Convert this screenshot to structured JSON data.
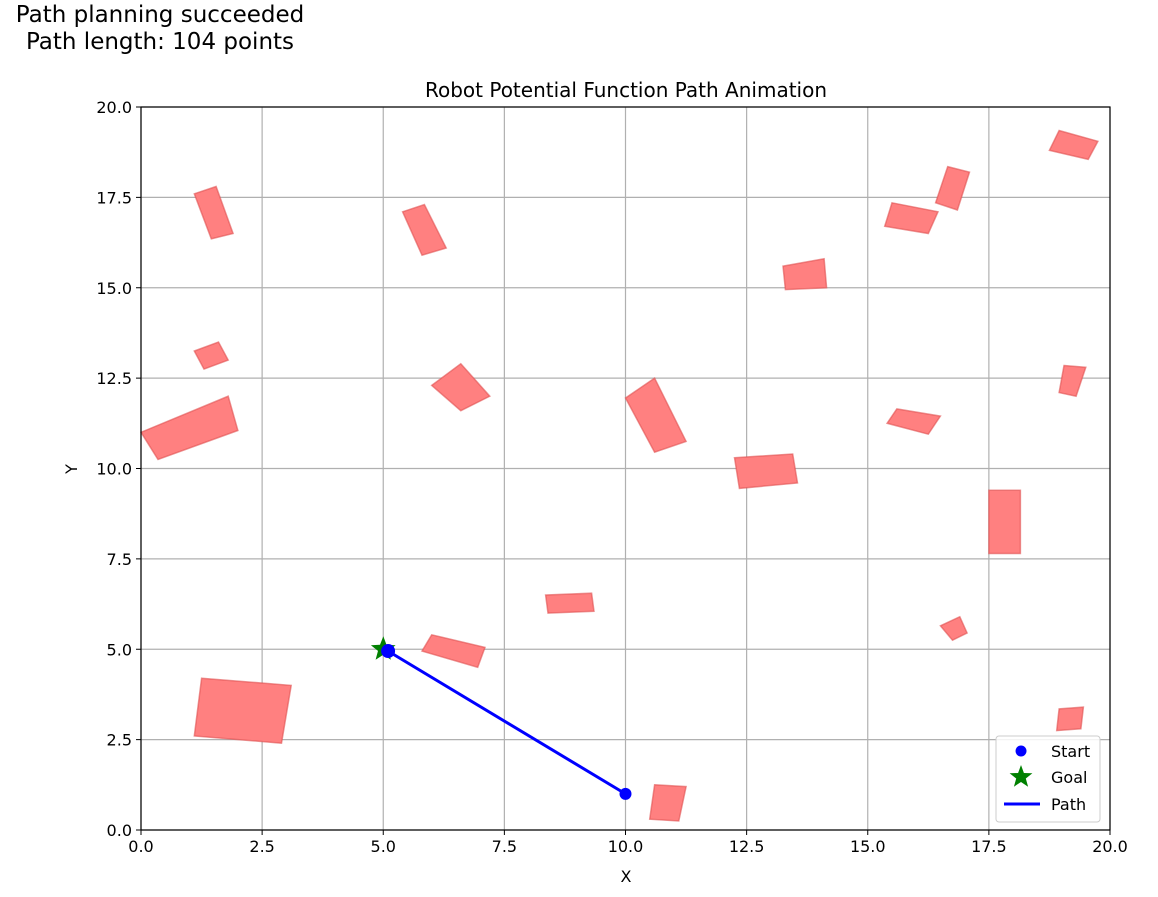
{
  "status": {
    "line1": "Path planning succeeded",
    "line2": "Path length: 104 points"
  },
  "chart_data": {
    "type": "scatter",
    "title": "Robot Potential Function Path Animation",
    "xlabel": "X",
    "ylabel": "Y",
    "xlim": [
      0,
      20
    ],
    "ylim": [
      0,
      20
    ],
    "grid": true,
    "xticks": [
      "0.0",
      "2.5",
      "5.0",
      "7.5",
      "10.0",
      "12.5",
      "15.0",
      "17.5",
      "20.0"
    ],
    "yticks": [
      "0.0",
      "2.5",
      "5.0",
      "7.5",
      "10.0",
      "12.5",
      "15.0",
      "17.5",
      "20.0"
    ],
    "legend": {
      "position": "lower-right",
      "entries": [
        {
          "label": "Start",
          "marker": "circle",
          "color": "#0000ff"
        },
        {
          "label": "Goal",
          "marker": "star",
          "color": "#008000"
        },
        {
          "label": "Path",
          "marker": "line",
          "color": "#0000ff"
        }
      ]
    },
    "start": {
      "x": 10.0,
      "y": 1.0
    },
    "goal": {
      "x": 5.0,
      "y": 5.0
    },
    "current": {
      "x": 5.1,
      "y": 4.95
    },
    "path": [
      {
        "x": 10.0,
        "y": 1.0
      },
      {
        "x": 5.1,
        "y": 4.95
      }
    ],
    "obstacle_color": "#ff8080",
    "obstacles": [
      [
        [
          1.25,
          4.2
        ],
        [
          3.1,
          4.0
        ],
        [
          2.9,
          2.4
        ],
        [
          1.1,
          2.6
        ]
      ],
      [
        [
          10.6,
          1.25
        ],
        [
          11.25,
          1.2
        ],
        [
          11.1,
          0.25
        ],
        [
          10.5,
          0.3
        ]
      ],
      [
        [
          18.95,
          3.35
        ],
        [
          19.45,
          3.4
        ],
        [
          19.4,
          2.8
        ],
        [
          18.9,
          2.75
        ]
      ],
      [
        [
          16.5,
          5.65
        ],
        [
          16.9,
          5.9
        ],
        [
          17.05,
          5.45
        ],
        [
          16.75,
          5.25
        ]
      ],
      [
        [
          17.5,
          9.4
        ],
        [
          18.15,
          9.4
        ],
        [
          18.15,
          7.65
        ],
        [
          17.5,
          7.65
        ]
      ],
      [
        [
          8.35,
          6.5
        ],
        [
          9.3,
          6.55
        ],
        [
          9.35,
          6.05
        ],
        [
          8.4,
          6.0
        ]
      ],
      [
        [
          6.0,
          5.4
        ],
        [
          7.1,
          5.05
        ],
        [
          6.95,
          4.5
        ],
        [
          5.8,
          4.95
        ]
      ],
      [
        [
          12.25,
          10.3
        ],
        [
          13.45,
          10.4
        ],
        [
          13.55,
          9.6
        ],
        [
          12.35,
          9.45
        ]
      ],
      [
        [
          10.0,
          11.95
        ],
        [
          10.6,
          12.5
        ],
        [
          11.25,
          10.75
        ],
        [
          10.6,
          10.45
        ]
      ],
      [
        [
          6.0,
          12.3
        ],
        [
          6.6,
          12.9
        ],
        [
          7.2,
          12.0
        ],
        [
          6.6,
          11.6
        ]
      ],
      [
        [
          15.6,
          11.65
        ],
        [
          16.5,
          11.45
        ],
        [
          16.25,
          10.95
        ],
        [
          15.4,
          11.25
        ]
      ],
      [
        [
          19.05,
          12.85
        ],
        [
          19.5,
          12.8
        ],
        [
          19.3,
          12.0
        ],
        [
          18.95,
          12.1
        ]
      ],
      [
        [
          1.8,
          12.0
        ],
        [
          2.0,
          11.05
        ],
        [
          0.35,
          10.25
        ],
        [
          0.0,
          11.0
        ]
      ],
      [
        [
          1.1,
          13.25
        ],
        [
          1.6,
          13.5
        ],
        [
          1.8,
          13.0
        ],
        [
          1.3,
          12.75
        ]
      ],
      [
        [
          1.1,
          17.6
        ],
        [
          1.55,
          17.8
        ],
        [
          1.9,
          16.5
        ],
        [
          1.45,
          16.35
        ]
      ],
      [
        [
          5.4,
          17.1
        ],
        [
          5.85,
          17.3
        ],
        [
          6.3,
          16.1
        ],
        [
          5.8,
          15.9
        ]
      ],
      [
        [
          13.25,
          15.6
        ],
        [
          14.1,
          15.8
        ],
        [
          14.15,
          15.0
        ],
        [
          13.3,
          14.95
        ]
      ],
      [
        [
          15.5,
          17.35
        ],
        [
          16.45,
          17.1
        ],
        [
          16.25,
          16.5
        ],
        [
          15.35,
          16.7
        ]
      ],
      [
        [
          16.65,
          18.35
        ],
        [
          17.1,
          18.2
        ],
        [
          16.85,
          17.15
        ],
        [
          16.4,
          17.35
        ]
      ],
      [
        [
          18.95,
          19.35
        ],
        [
          19.75,
          19.05
        ],
        [
          19.55,
          18.55
        ],
        [
          18.75,
          18.8
        ]
      ]
    ]
  }
}
